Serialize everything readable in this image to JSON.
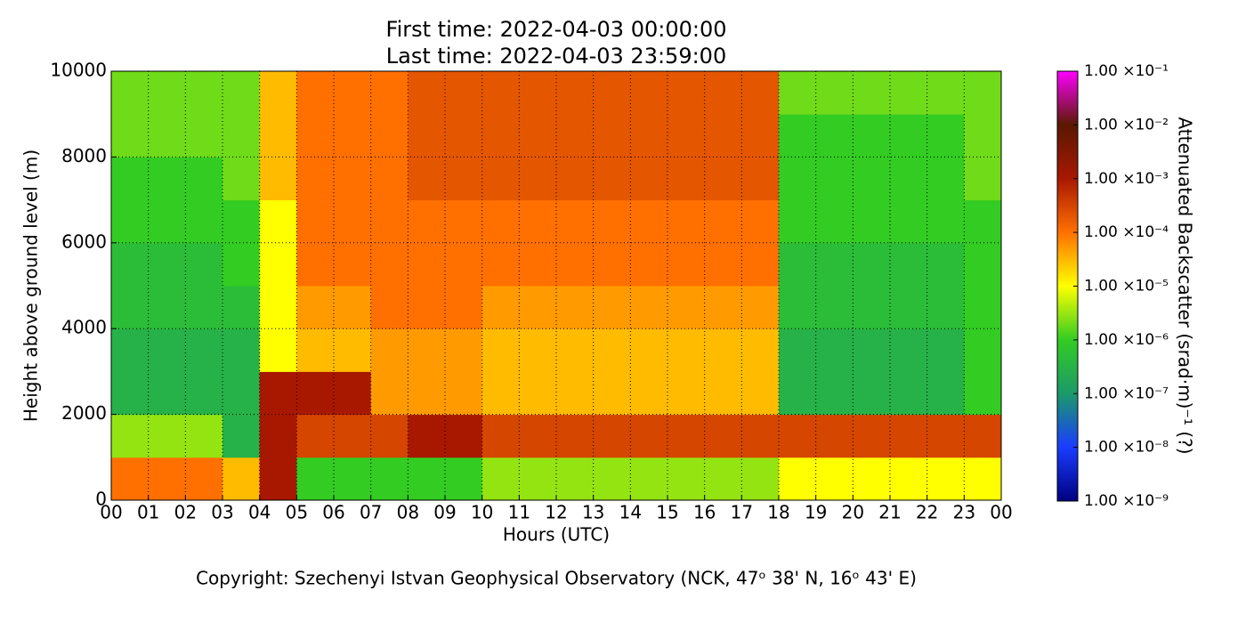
{
  "chart_data": {
    "type": "heatmap",
    "title": "First time: 2022-04-03 00:00:00",
    "subtitle": "Last time: 2022-04-03 23:59:00",
    "x_label": "Hours (UTC)",
    "y_label": "Height above ground level (m)",
    "colorbar_label": "Attenuated Backscatter (srad·m)⁻¹ (?)",
    "footer": "Copyright: Szechenyi Istvan Geophysical Observatory (NCK, 47ᵒ 38' N, 16ᵒ 43' E)",
    "xlim": [
      0,
      24
    ],
    "xticks": [
      {
        "value": 0,
        "label": "00"
      },
      {
        "value": 1,
        "label": "01"
      },
      {
        "value": 2,
        "label": "02"
      },
      {
        "value": 3,
        "label": "03"
      },
      {
        "value": 4,
        "label": "04"
      },
      {
        "value": 5,
        "label": "05"
      },
      {
        "value": 6,
        "label": "06"
      },
      {
        "value": 7,
        "label": "07"
      },
      {
        "value": 8,
        "label": "08"
      },
      {
        "value": 9,
        "label": "09"
      },
      {
        "value": 10,
        "label": "10"
      },
      {
        "value": 11,
        "label": "11"
      },
      {
        "value": 12,
        "label": "12"
      },
      {
        "value": 13,
        "label": "13"
      },
      {
        "value": 14,
        "label": "14"
      },
      {
        "value": 15,
        "label": "15"
      },
      {
        "value": 16,
        "label": "16"
      },
      {
        "value": 17,
        "label": "17"
      },
      {
        "value": 18,
        "label": "18"
      },
      {
        "value": 19,
        "label": "19"
      },
      {
        "value": 20,
        "label": "20"
      },
      {
        "value": 21,
        "label": "21"
      },
      {
        "value": 22,
        "label": "22"
      },
      {
        "value": 23,
        "label": "23"
      },
      {
        "value": 24,
        "label": "00"
      }
    ],
    "ylim": [
      0,
      10000
    ],
    "yticks": [
      0,
      2000,
      4000,
      6000,
      8000,
      10000
    ],
    "grid": true,
    "clim": [
      1e-09,
      0.1
    ],
    "log_scale_color": true,
    "colormap": [
      "#00007f",
      "#1a3cff",
      "#1a9a6a",
      "#33cc22",
      "#ffff00",
      "#ff7000",
      "#a81800",
      "#5a1800",
      "#ff00ff"
    ],
    "cticks": [
      {
        "value": 1e-09,
        "label": "1.00 ×10⁻⁹"
      },
      {
        "value": 1e-08,
        "label": "1.00 ×10⁻⁸"
      },
      {
        "value": 1e-07,
        "label": "1.00 ×10⁻⁷"
      },
      {
        "value": 1e-06,
        "label": "1.00 ×10⁻⁶"
      },
      {
        "value": 1e-05,
        "label": "1.00 ×10⁻⁵"
      },
      {
        "value": 0.0001,
        "label": "1.00 ×10⁻⁴"
      },
      {
        "value": 0.001,
        "label": "1.00 ×10⁻³"
      },
      {
        "value": 0.01,
        "label": "1.00 ×10⁻²"
      },
      {
        "value": 0.1,
        "label": "1.00 ×10⁻¹"
      }
    ],
    "z": [
      [
        0.0001,
        0.0001,
        0.0001,
        3e-05,
        0.001,
        1e-06,
        1e-06,
        1e-06,
        1e-06,
        1e-06,
        3e-06,
        3e-06,
        3e-06,
        3e-06,
        3e-06,
        3e-06,
        3e-06,
        3e-06,
        1e-05,
        1e-05,
        1e-05,
        1e-05,
        1e-05,
        1e-05
      ],
      [
        3e-06,
        3e-06,
        3e-06,
        3e-07,
        0.001,
        0.0003,
        0.0003,
        0.0003,
        0.001,
        0.001,
        0.0003,
        0.0003,
        0.0003,
        0.0003,
        0.0003,
        0.0003,
        0.0003,
        0.0003,
        0.0003,
        0.0003,
        0.0003,
        0.0003,
        0.0003,
        0.0003
      ],
      [
        3e-07,
        3e-07,
        3e-07,
        3e-07,
        0.001,
        0.001,
        0.001,
        5e-05,
        5e-05,
        5e-05,
        3e-05,
        3e-05,
        3e-05,
        3e-05,
        3e-05,
        3e-05,
        3e-05,
        3e-05,
        3e-07,
        3e-07,
        3e-07,
        3e-07,
        3e-07,
        1e-06
      ],
      [
        3e-07,
        3e-07,
        3e-07,
        3e-07,
        1e-05,
        3e-05,
        3e-05,
        5e-05,
        5e-05,
        5e-05,
        3e-05,
        3e-05,
        3e-05,
        3e-05,
        3e-05,
        3e-05,
        3e-05,
        3e-05,
        3e-07,
        3e-07,
        3e-07,
        3e-07,
        3e-07,
        1e-06
      ],
      [
        5e-07,
        5e-07,
        5e-07,
        5e-07,
        1e-05,
        5e-05,
        5e-05,
        0.0001,
        0.0001,
        0.0001,
        5e-05,
        5e-05,
        5e-05,
        5e-05,
        5e-05,
        5e-05,
        5e-05,
        5e-05,
        5e-07,
        5e-07,
        5e-07,
        5e-07,
        5e-07,
        1e-06
      ],
      [
        5e-07,
        5e-07,
        5e-07,
        1e-06,
        1e-05,
        0.0001,
        0.0001,
        0.0001,
        0.0001,
        0.0001,
        0.0001,
        0.0001,
        0.0001,
        0.0001,
        0.0001,
        0.0001,
        0.0001,
        0.0001,
        5e-07,
        5e-07,
        5e-07,
        5e-07,
        5e-07,
        1e-06
      ],
      [
        1e-06,
        1e-06,
        1e-06,
        1e-06,
        1e-05,
        0.0001,
        0.0001,
        0.0001,
        0.0001,
        0.0001,
        0.0001,
        0.0001,
        0.0001,
        0.0001,
        0.0001,
        0.0001,
        0.0001,
        0.0001,
        1e-06,
        1e-06,
        1e-06,
        1e-06,
        1e-06,
        1e-06
      ],
      [
        1e-06,
        1e-06,
        1e-06,
        2e-06,
        3e-05,
        0.0001,
        0.0001,
        0.0001,
        0.0002,
        0.0002,
        0.0002,
        0.0002,
        0.0002,
        0.0002,
        0.0002,
        0.0002,
        0.0002,
        0.0002,
        1e-06,
        1e-06,
        1e-06,
        1e-06,
        1e-06,
        2e-06
      ],
      [
        2e-06,
        2e-06,
        2e-06,
        2e-06,
        3e-05,
        0.0001,
        0.0001,
        0.0001,
        0.0002,
        0.0002,
        0.0002,
        0.0002,
        0.0002,
        0.0002,
        0.0002,
        0.0002,
        0.0002,
        0.0002,
        1e-06,
        1e-06,
        1e-06,
        1e-06,
        1e-06,
        2e-06
      ],
      [
        2e-06,
        2e-06,
        2e-06,
        2e-06,
        3e-05,
        0.0001,
        0.0001,
        0.0001,
        0.0002,
        0.0002,
        0.0002,
        0.0002,
        0.0002,
        0.0002,
        0.0002,
        0.0002,
        0.0002,
        0.0002,
        2e-06,
        2e-06,
        2e-06,
        2e-06,
        2e-06,
        2e-06
      ]
    ]
  }
}
